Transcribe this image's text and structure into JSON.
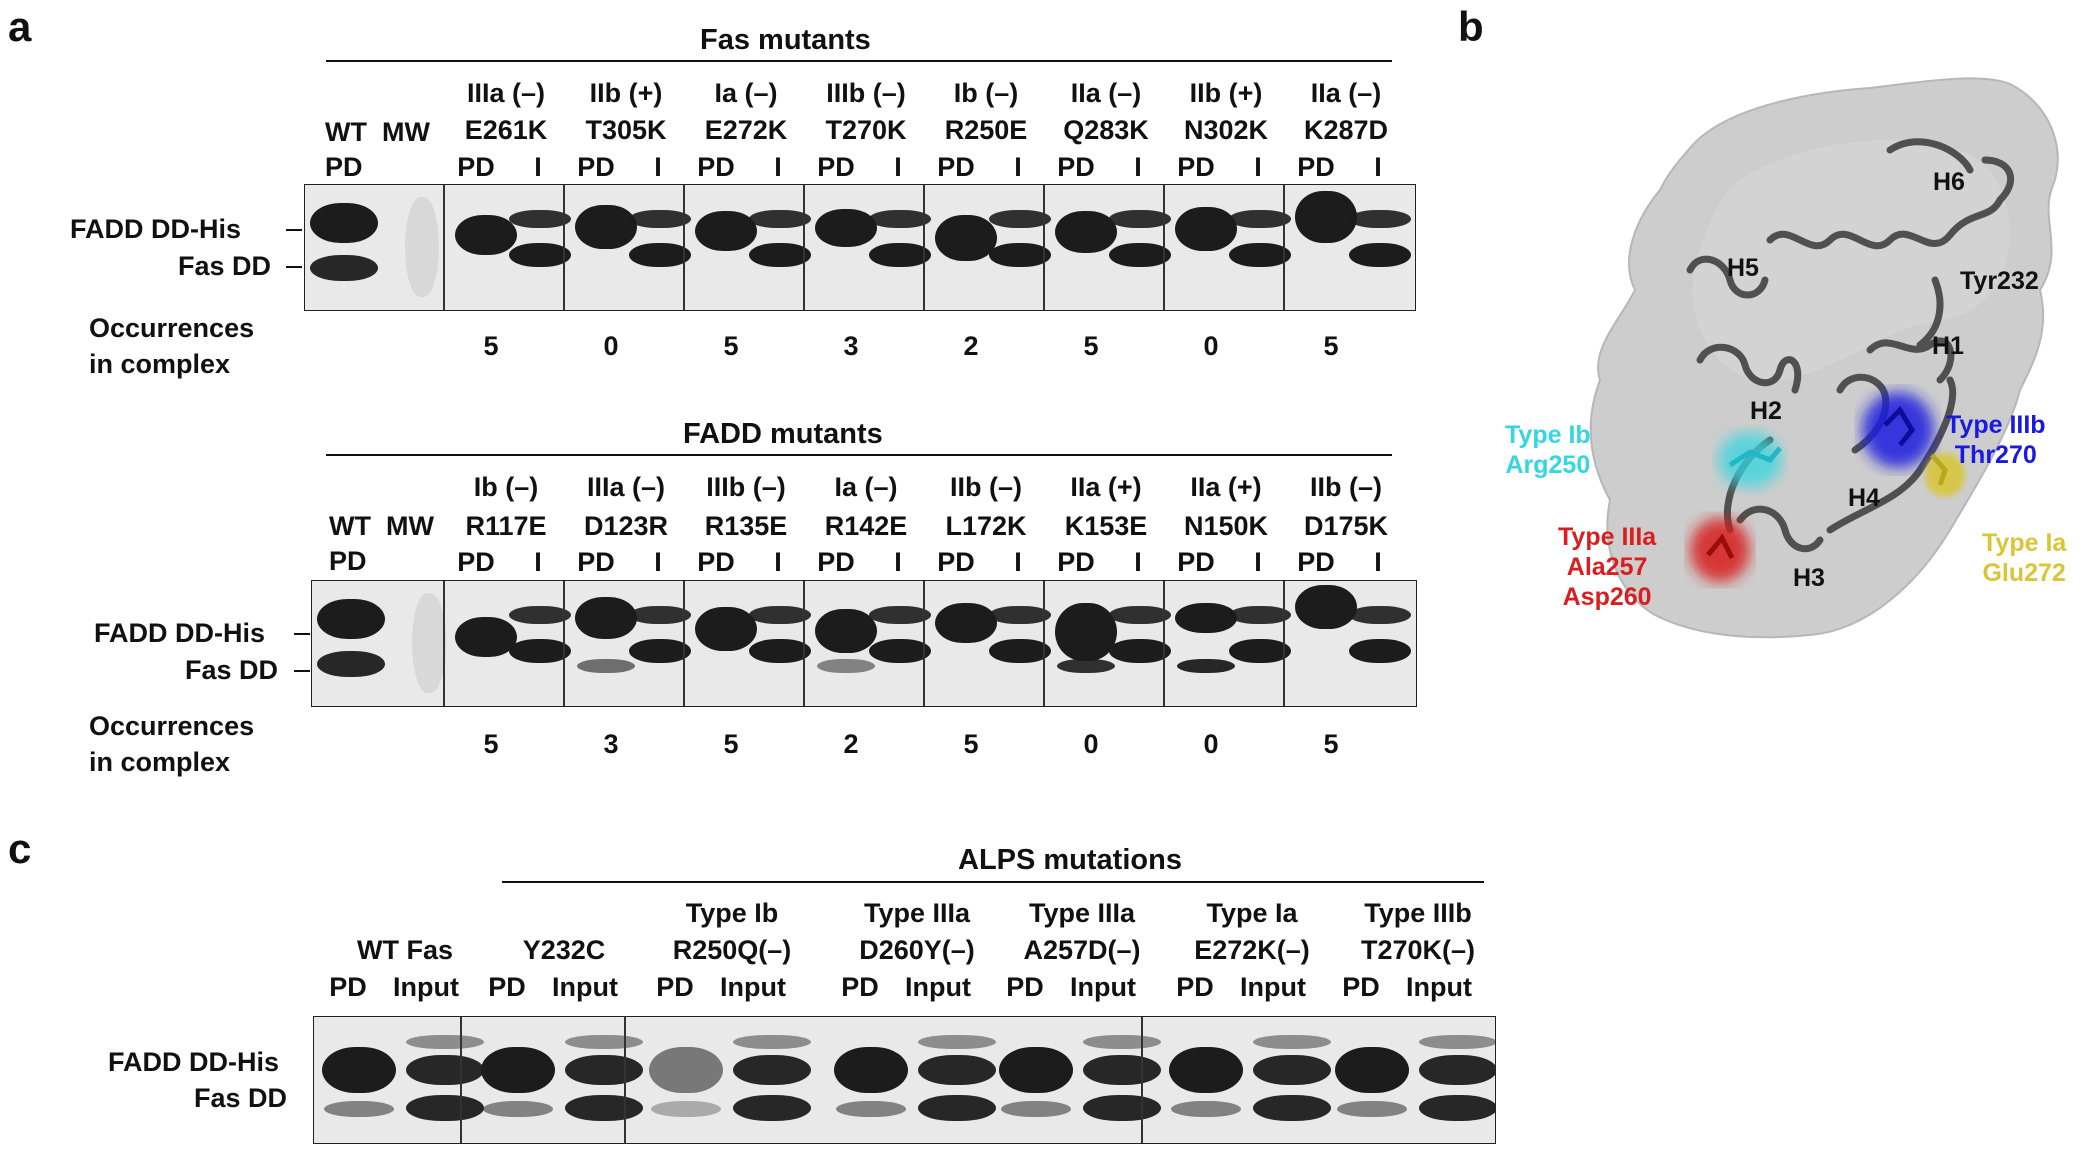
{
  "panels": {
    "a": "a",
    "b": "b",
    "c": "c"
  },
  "panel_a": {
    "fas": {
      "header": "Fas mutants",
      "wt": {
        "line1": "WT",
        "line2": "MW",
        "line3": "PD"
      },
      "lanes": [
        {
          "type": "IIIa (–)",
          "mutation": "E261K",
          "pd": "PD",
          "i": "I",
          "occ": "5"
        },
        {
          "type": "IIb (+)",
          "mutation": "T305K",
          "pd": "PD",
          "i": "I",
          "occ": "0"
        },
        {
          "type": "Ia (–)",
          "mutation": "E272K",
          "pd": "PD",
          "i": "I",
          "occ": "5"
        },
        {
          "type": "IIIb (–)",
          "mutation": "T270K",
          "pd": "PD",
          "i": "I",
          "occ": "3"
        },
        {
          "type": "Ib (–)",
          "mutation": "R250E",
          "pd": "PD",
          "i": "I",
          "occ": "2"
        },
        {
          "type": "IIa (–)",
          "mutation": "Q283K",
          "pd": "PD",
          "i": "I",
          "occ": "5"
        },
        {
          "type": "IIb (+)",
          "mutation": "N302K",
          "pd": "PD",
          "i": "I",
          "occ": "0"
        },
        {
          "type": "IIa (–)",
          "mutation": "K287D",
          "pd": "PD",
          "i": "I",
          "occ": "5"
        }
      ],
      "row_labels": {
        "fadd": "FADD DD-His",
        "fas": "Fas DD"
      },
      "occ_label": {
        "line1": "Occurrences",
        "line2": "in complex"
      }
    },
    "fadd": {
      "header": "FADD mutants",
      "wt": {
        "line1": "WT",
        "line2": "MW",
        "line3": "PD"
      },
      "lanes": [
        {
          "type": "Ib (–)",
          "mutation": "R117E",
          "pd": "PD",
          "i": "I",
          "occ": "5"
        },
        {
          "type": "IIIa (–)",
          "mutation": "D123R",
          "pd": "PD",
          "i": "I",
          "occ": "3"
        },
        {
          "type": "IIIb (–)",
          "mutation": "R135E",
          "pd": "PD",
          "i": "I",
          "occ": "5"
        },
        {
          "type": "Ia (–)",
          "mutation": "R142E",
          "pd": "PD",
          "i": "I",
          "occ": "2"
        },
        {
          "type": "IIb (–)",
          "mutation": "L172K",
          "pd": "PD",
          "i": "I",
          "occ": "5"
        },
        {
          "type": "IIa (+)",
          "mutation": "K153E",
          "pd": "PD",
          "i": "I",
          "occ": "0"
        },
        {
          "type": "IIa (+)",
          "mutation": "N150K",
          "pd": "PD",
          "i": "I",
          "occ": "0"
        },
        {
          "type": "IIb (–)",
          "mutation": "D175K",
          "pd": "PD",
          "i": "I",
          "occ": "5"
        }
      ],
      "row_labels": {
        "fadd": "FADD DD-His",
        "fas": "Fas DD"
      },
      "occ_label": {
        "line1": "Occurrences",
        "line2": "in complex"
      }
    }
  },
  "panel_b": {
    "helices": [
      "H6",
      "H5",
      "H1",
      "H2",
      "H4",
      "H3"
    ],
    "tyr": "Tyr232",
    "sites": [
      {
        "line1": "Type Ib",
        "line2": "Arg250",
        "color": "#35d6e0"
      },
      {
        "line1": "Type IIIb",
        "line2": "Thr270",
        "color": "#1a1adf"
      },
      {
        "line1": "Type IIIa",
        "line2": "Ala257",
        "line3": "Asp260",
        "color": "#d81e1e"
      },
      {
        "line1": "Type Ia",
        "line2": "Glu272",
        "color": "#d8c636"
      }
    ]
  },
  "panel_c": {
    "header": "ALPS mutations",
    "groups": [
      {
        "line1": "",
        "line2": "WT Fas",
        "pd": "PD",
        "input": "Input"
      },
      {
        "line1": "",
        "line2": "Y232C",
        "pd": "PD",
        "input": "Input"
      },
      {
        "line1": "Type Ib",
        "line2": "R250Q(–)",
        "pd": "PD",
        "input": "Input"
      },
      {
        "line1": "Type IIIa",
        "line2": "D260Y(–)",
        "pd": "PD",
        "input": "Input"
      },
      {
        "line1": "Type IIIa",
        "line2": "A257D(–)",
        "pd": "PD",
        "input": "Input"
      },
      {
        "line1": "Type Ia",
        "line2": "E272K(–)",
        "pd": "PD",
        "input": "Input"
      },
      {
        "line1": "Type IIIb",
        "line2": "T270K(–)",
        "pd": "PD",
        "input": "Input"
      }
    ],
    "row_labels": {
      "fadd": "FADD DD-His",
      "fas": "Fas DD"
    }
  }
}
